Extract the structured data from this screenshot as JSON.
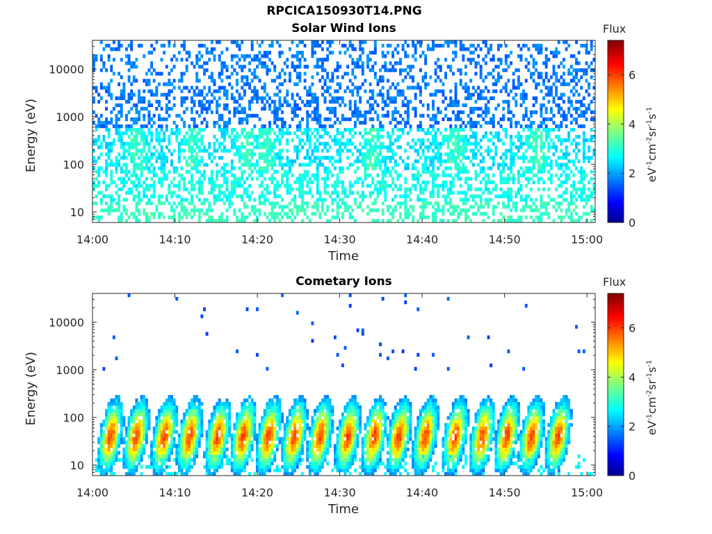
{
  "figure_title": "RPCICA150930T14.PNG",
  "colorbar": {
    "label": "Flux",
    "unit_base": "eV",
    "unit_parts": [
      {
        "t": "eV",
        "e": "-1"
      },
      {
        "t": "cm",
        "e": "-2"
      },
      {
        "t": "sr",
        "e": "-1"
      },
      {
        "t": "s",
        "e": "-1"
      }
    ],
    "range": [
      0,
      7.4
    ],
    "ticks": [
      "0",
      "2",
      "4",
      "6"
    ],
    "colormap": "jet"
  },
  "chart_data": [
    {
      "type": "heatmap",
      "title": "Solar Wind Ions",
      "xlabel": "Time",
      "ylabel": "Energy (eV)",
      "x_ticks": [
        "14:00",
        "14:10",
        "14:20",
        "14:30",
        "14:40",
        "14:50",
        "15:00"
      ],
      "y_ticks": [
        "10",
        "100",
        "1000",
        "10000"
      ],
      "y_scale": "log",
      "ylim": [
        6,
        40000
      ],
      "xlim": [
        "14:00",
        "15:01"
      ],
      "intensity_peaks_minutes": [
        5.3,
        12.2,
        18.6,
        21.0,
        34.0,
        44.0,
        54.0
      ],
      "typical_flux": {
        "high_energy": 1.5,
        "mid_energy": 2.3,
        "low_energy": 3.0
      },
      "z_range": [
        0,
        7.4
      ]
    },
    {
      "type": "heatmap",
      "title": "Cometary Ions",
      "xlabel": "Time",
      "ylabel": "Energy (eV)",
      "x_ticks": [
        "14:00",
        "14:10",
        "14:20",
        "14:30",
        "14:40",
        "14:50",
        "15:00"
      ],
      "y_ticks": [
        "10",
        "100",
        "1000",
        "10000"
      ],
      "y_scale": "log",
      "ylim": [
        6,
        40000
      ],
      "xlim": [
        "14:00",
        "15:01"
      ],
      "burst_centers_minutes": [
        2.2,
        5.3,
        8.7,
        11.8,
        15.2,
        18.3,
        21.4,
        24.5,
        27.6,
        31.0,
        34.2,
        37.2,
        40.4,
        44.0,
        47.3,
        50.3,
        53.3,
        56.5
      ],
      "burst_peak_energy_eV": 40,
      "burst_peak_flux": 6.0,
      "z_range": [
        0,
        7.4
      ]
    }
  ]
}
